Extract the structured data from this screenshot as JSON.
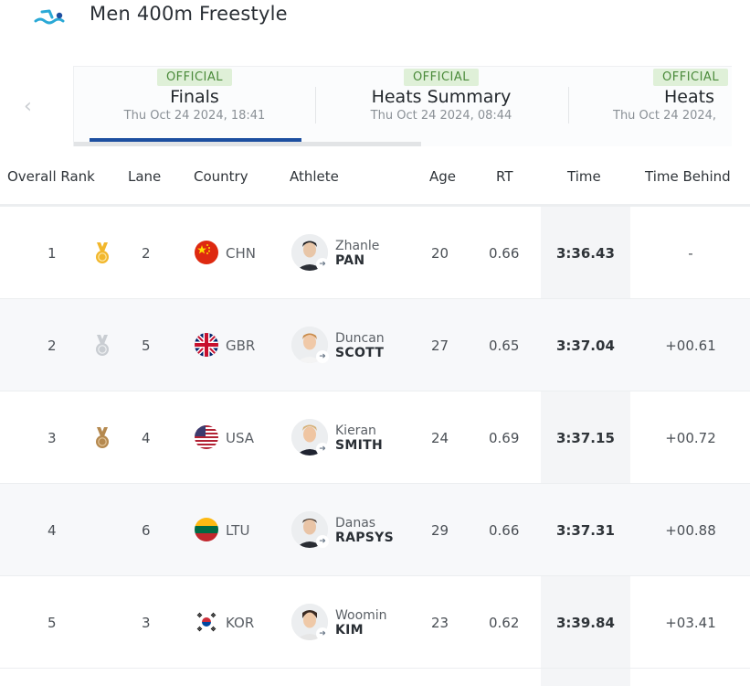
{
  "header": {
    "title": "Men 400m Freestyle",
    "icon": "swimming-icon",
    "accent_color": "#2aa9d6"
  },
  "tabs": [
    {
      "badge": "OFFICIAL",
      "name": "Finals",
      "date": "Thu Oct 24 2024, 18:41",
      "active": true
    },
    {
      "badge": "OFFICIAL",
      "name": "Heats Summary",
      "date": "Thu Oct 24 2024, 08:44",
      "active": false
    },
    {
      "badge": "OFFICIAL",
      "name": "Heats",
      "date": "Thu Oct 24 2024,",
      "active": false
    }
  ],
  "table": {
    "columns": [
      "Overall Rank",
      "Lane",
      "Country",
      "Athlete",
      "Age",
      "RT",
      "Time",
      "Time Behind"
    ],
    "rows": [
      {
        "rank": "1",
        "medal": "gold-medal-icon",
        "lane": "2",
        "flag": "china-flag-icon",
        "country": "CHN",
        "first_name": "Zhanle",
        "last_name": "PAN",
        "age": "20",
        "rt": "0.66",
        "time": "3:36.43",
        "behind": "-"
      },
      {
        "rank": "2",
        "medal": "silver-medal-icon",
        "lane": "5",
        "flag": "uk-flag-icon",
        "country": "GBR",
        "first_name": "Duncan",
        "last_name": "SCOTT",
        "age": "27",
        "rt": "0.65",
        "time": "3:37.04",
        "behind": "+00.61"
      },
      {
        "rank": "3",
        "medal": "bronze-medal-icon",
        "lane": "4",
        "flag": "usa-flag-icon",
        "country": "USA",
        "first_name": "Kieran",
        "last_name": "SMITH",
        "age": "24",
        "rt": "0.69",
        "time": "3:37.15",
        "behind": "+00.72"
      },
      {
        "rank": "4",
        "medal": "",
        "lane": "6",
        "flag": "lithuania-flag-icon",
        "country": "LTU",
        "first_name": "Danas",
        "last_name": "RAPSYS",
        "age": "29",
        "rt": "0.66",
        "time": "3:37.31",
        "behind": "+00.88"
      },
      {
        "rank": "5",
        "medal": "",
        "lane": "3",
        "flag": "korea-flag-icon",
        "country": "KOR",
        "first_name": "Woomin",
        "last_name": "KIM",
        "age": "23",
        "rt": "0.62",
        "time": "3:39.84",
        "behind": "+03.41"
      }
    ]
  },
  "colors": {
    "official_badge_bg": "#dff0d8",
    "official_badge_text": "#4a8a3a",
    "active_tab_bar": "#1d4fa0",
    "gold": "#f2b72c",
    "silver": "#c9cdd2",
    "bronze": "#b5894f"
  }
}
